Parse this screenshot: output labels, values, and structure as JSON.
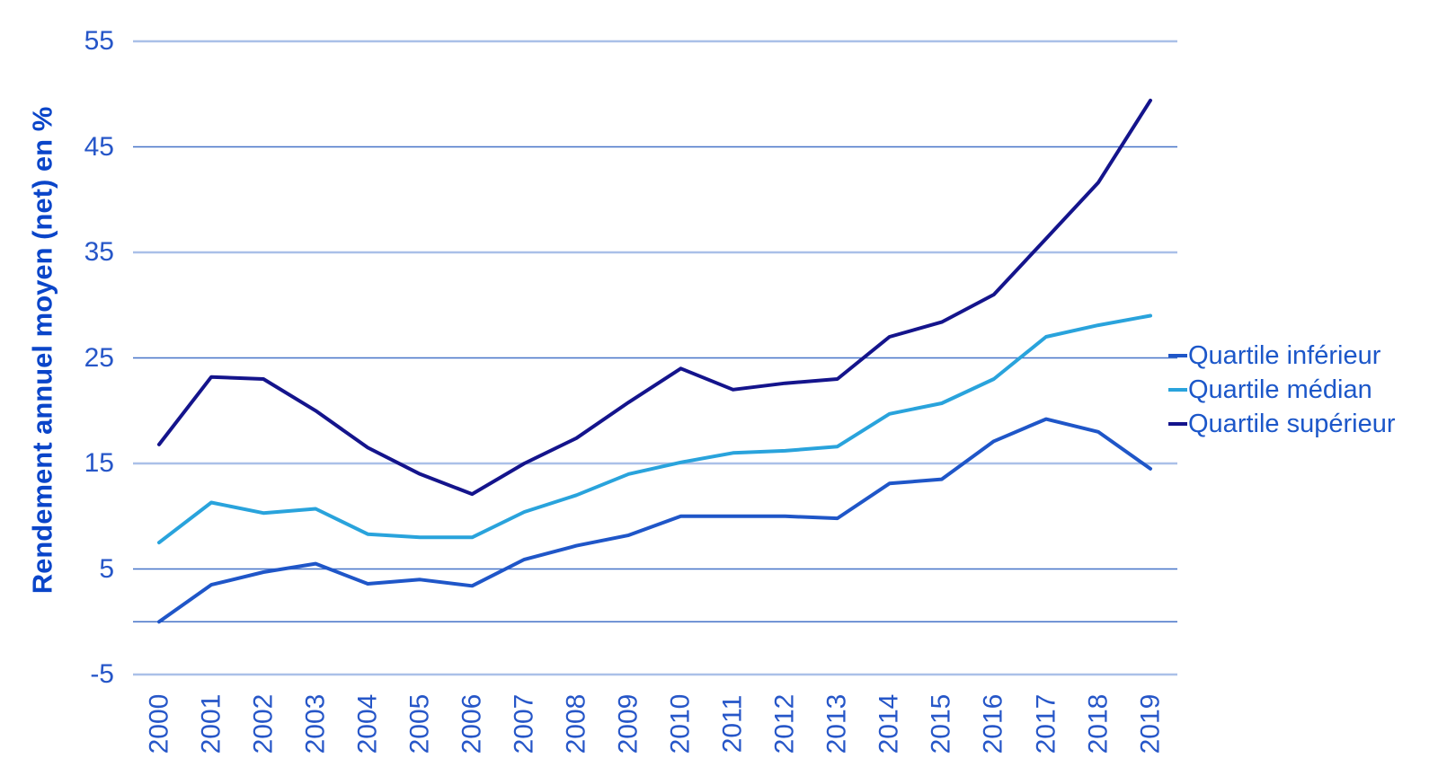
{
  "chart_data": {
    "type": "line",
    "title": "",
    "ylabel": "Rendement annuel moyen (net) en %",
    "xlabel": "",
    "x_labels": [
      "2000",
      "2001",
      "2002",
      "2003",
      "2004",
      "2005",
      "2006",
      "2007",
      "2008",
      "2009",
      "2010",
      "2011",
      "2012",
      "2013",
      "2014",
      "2015",
      "2016",
      "2017",
      "2018",
      "2019"
    ],
    "yticks": [
      55,
      45,
      35,
      25,
      15,
      5,
      -5
    ],
    "gridline_values": [
      55,
      45,
      35,
      25,
      15,
      5,
      0,
      -5
    ],
    "ylim": [
      -5,
      55
    ],
    "grid": true,
    "legend_position": "right",
    "series": [
      {
        "name": "Quartile inférieur",
        "color": "#1f56c8",
        "values": [
          0,
          3.5,
          4.7,
          5.5,
          3.6,
          4.0,
          3.4,
          5.9,
          7.2,
          8.2,
          10.0,
          10.0,
          10.0,
          9.8,
          13.1,
          13.5,
          17.1,
          19.2,
          18.0,
          14.5
        ]
      },
      {
        "name": "Quartile médian",
        "color": "#29a3dc",
        "values": [
          7.5,
          11.3,
          10.3,
          10.7,
          8.3,
          8.0,
          8.0,
          10.4,
          12.0,
          14.0,
          15.1,
          16.0,
          16.2,
          16.6,
          19.7,
          20.7,
          23.0,
          27.0,
          28.1,
          29.0
        ]
      },
      {
        "name": "Quartile supérieur",
        "color": "#14148c",
        "values": [
          16.8,
          23.2,
          23.0,
          20.0,
          16.5,
          14.0,
          12.1,
          15.0,
          17.4,
          20.8,
          24.0,
          22.0,
          22.6,
          23.0,
          27.0,
          28.4,
          31.0,
          36.3,
          41.6,
          49.4
        ]
      }
    ],
    "colors": {
      "gridline_dark": "#4673c8",
      "gridline_light": "#aac0e8",
      "tick_label": "#2656c8",
      "axis_title": "#0a45c9",
      "legend_text": "#1c57c9",
      "background": "#ffffff"
    }
  }
}
